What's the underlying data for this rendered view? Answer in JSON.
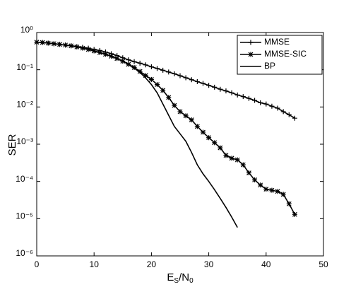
{
  "chart_data": {
    "type": "line",
    "xlabel": [
      "E",
      "S",
      "/N",
      "0"
    ],
    "ylabel": "SER",
    "x": [
      0,
      1,
      2,
      3,
      4,
      5,
      6,
      7,
      8,
      9,
      10,
      11,
      12,
      13,
      14,
      15,
      16,
      17,
      18,
      19,
      20,
      21,
      22,
      23,
      24,
      25,
      26,
      27,
      28,
      29,
      30,
      31,
      32,
      33,
      34,
      35,
      36,
      37,
      38,
      39,
      40,
      41,
      42,
      43,
      44,
      45
    ],
    "series": [
      {
        "name": "MMSE",
        "color": "#000000",
        "marker": "+",
        "values": [
          0.55,
          0.54,
          0.52,
          0.5,
          0.48,
          0.46,
          0.44,
          0.42,
          0.4,
          0.38,
          0.35,
          0.33,
          0.3,
          0.27,
          0.24,
          0.21,
          0.185,
          0.165,
          0.15,
          0.135,
          0.12,
          0.108,
          0.097,
          0.087,
          0.078,
          0.069,
          0.061,
          0.054,
          0.048,
          0.043,
          0.038,
          0.034,
          0.03,
          0.027,
          0.024,
          0.021,
          0.019,
          0.017,
          0.015,
          0.013,
          0.012,
          0.0105,
          0.0093,
          0.0075,
          0.0062,
          0.005
        ]
      },
      {
        "name": "MMSE-SIC",
        "color": "#000000",
        "marker": "*",
        "values": [
          0.55,
          0.54,
          0.52,
          0.5,
          0.48,
          0.46,
          0.44,
          0.41,
          0.38,
          0.35,
          0.32,
          0.29,
          0.26,
          0.23,
          0.2,
          0.17,
          0.14,
          0.115,
          0.09,
          0.07,
          0.055,
          0.04,
          0.028,
          0.018,
          0.011,
          0.0075,
          0.0058,
          0.0045,
          0.003,
          0.0021,
          0.0015,
          0.0011,
          0.0008,
          0.0005,
          0.00042,
          0.00038,
          0.00028,
          0.00017,
          0.00011,
          8e-05,
          6.2e-05,
          5.8e-05,
          5.4e-05,
          4.5e-05,
          2.5e-05,
          1.3e-05
        ]
      },
      {
        "name": "BP",
        "color": "#000000",
        "marker": "none",
        "values": [
          0.55,
          0.54,
          0.52,
          0.5,
          0.48,
          0.46,
          0.44,
          0.41,
          0.38,
          0.35,
          0.32,
          0.29,
          0.26,
          0.23,
          0.2,
          0.17,
          0.14,
          0.11,
          0.085,
          0.06,
          0.04,
          0.024,
          0.012,
          0.006,
          0.003,
          0.0019,
          0.0012,
          0.0006,
          0.00028,
          0.00016,
          0.0001,
          6e-05,
          3.5e-05,
          2e-05,
          1.1e-05,
          5.8e-06,
          null,
          null,
          null,
          null,
          null,
          null,
          null,
          null,
          null,
          null
        ]
      }
    ],
    "xlim": [
      0,
      50
    ],
    "xticks": [
      0,
      10,
      20,
      30,
      40,
      50
    ],
    "ylim": [
      1e-06,
      1
    ],
    "yscale": "log",
    "yticks": [
      {
        "value": 1e-06,
        "label": "10⁻⁶"
      },
      {
        "value": 1e-05,
        "label": "10⁻⁵"
      },
      {
        "value": 0.0001,
        "label": "10⁻⁴"
      },
      {
        "value": 0.001,
        "label": "10⁻³"
      },
      {
        "value": 0.01,
        "label": "10⁻²"
      },
      {
        "value": 0.1,
        "label": "10⁻¹"
      },
      {
        "value": 1,
        "label": "10⁰"
      }
    ],
    "legend": "upper right"
  }
}
